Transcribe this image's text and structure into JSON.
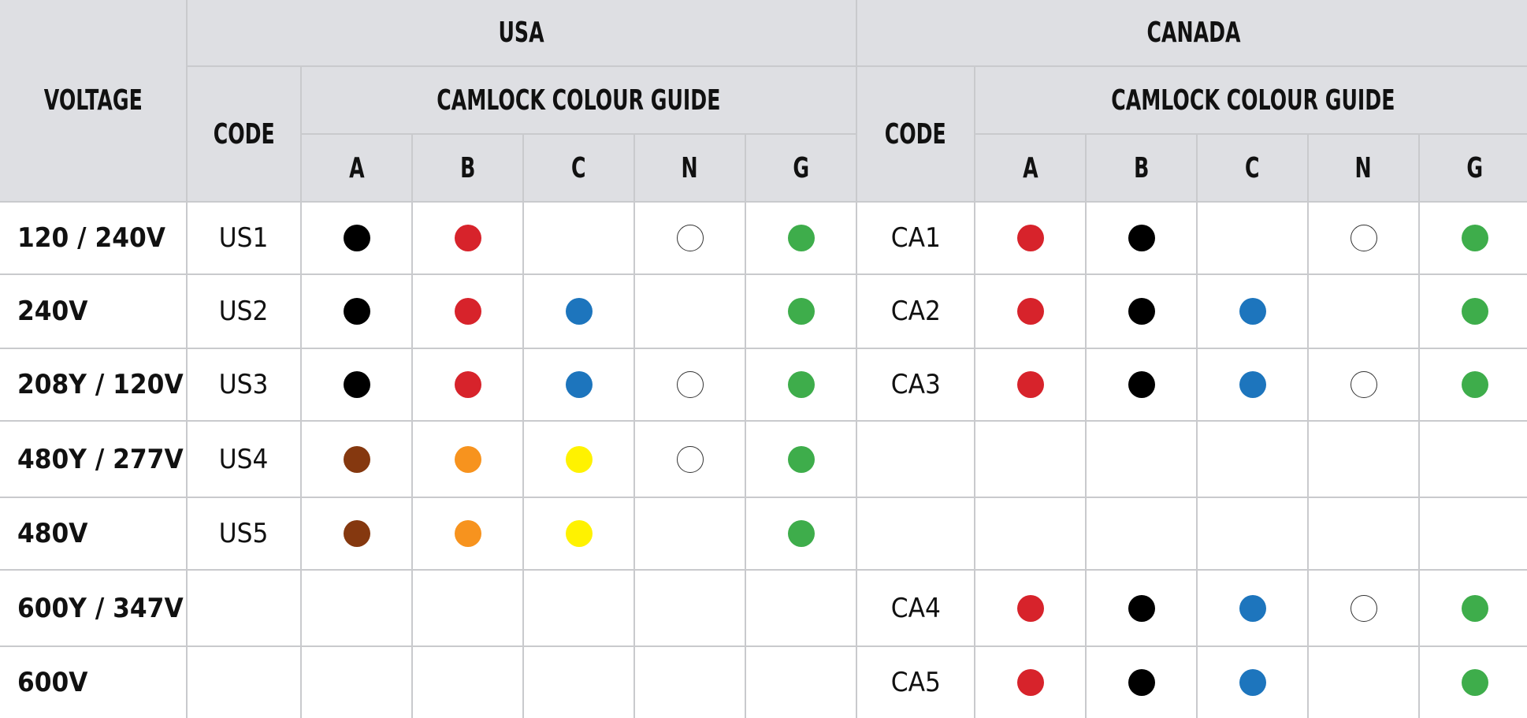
{
  "header": {
    "voltage": "VOLTAGE",
    "code": "CODE",
    "camlock_guide": "CAMLOCK COLOUR GUIDE",
    "usa": "USA",
    "canada": "CANADA",
    "columns": [
      "A",
      "B",
      "C",
      "N",
      "G"
    ]
  },
  "colors": {
    "black": "#000000",
    "red": "#d7232b",
    "blue": "#1d75bd",
    "white": "#ffffff",
    "green": "#3ead4b",
    "brown": "#85380f",
    "orange": "#f7931e",
    "yellow": "#fff200"
  },
  "rows": [
    {
      "voltage": "120 / 240V",
      "us_code": "US1",
      "us": [
        "black",
        "red",
        null,
        "white",
        "green"
      ],
      "ca_code": "CA1",
      "ca": [
        "red",
        "black",
        null,
        "white",
        "green"
      ]
    },
    {
      "voltage": "240V",
      "us_code": "US2",
      "us": [
        "black",
        "red",
        "blue",
        null,
        "green"
      ],
      "ca_code": "CA2",
      "ca": [
        "red",
        "black",
        "blue",
        null,
        "green"
      ]
    },
    {
      "voltage": "208Y / 120V",
      "us_code": "US3",
      "us": [
        "black",
        "red",
        "blue",
        "white",
        "green"
      ],
      "ca_code": "CA3",
      "ca": [
        "red",
        "black",
        "blue",
        "white",
        "green"
      ]
    },
    {
      "voltage": "480Y / 277V",
      "us_code": "US4",
      "us": [
        "brown",
        "orange",
        "yellow",
        "white",
        "green"
      ],
      "ca_code": "",
      "ca": [
        null,
        null,
        null,
        null,
        null
      ]
    },
    {
      "voltage": "480V",
      "us_code": "US5",
      "us": [
        "brown",
        "orange",
        "yellow",
        null,
        "green"
      ],
      "ca_code": "",
      "ca": [
        null,
        null,
        null,
        null,
        null
      ]
    },
    {
      "voltage": "600Y / 347V",
      "us_code": "",
      "us": [
        null,
        null,
        null,
        null,
        null
      ],
      "ca_code": "CA4",
      "ca": [
        "red",
        "black",
        "blue",
        "white",
        "green"
      ]
    },
    {
      "voltage": "600V",
      "us_code": "",
      "us": [
        null,
        null,
        null,
        null,
        null
      ],
      "ca_code": "CA5",
      "ca": [
        "red",
        "black",
        "blue",
        null,
        "green"
      ]
    }
  ]
}
